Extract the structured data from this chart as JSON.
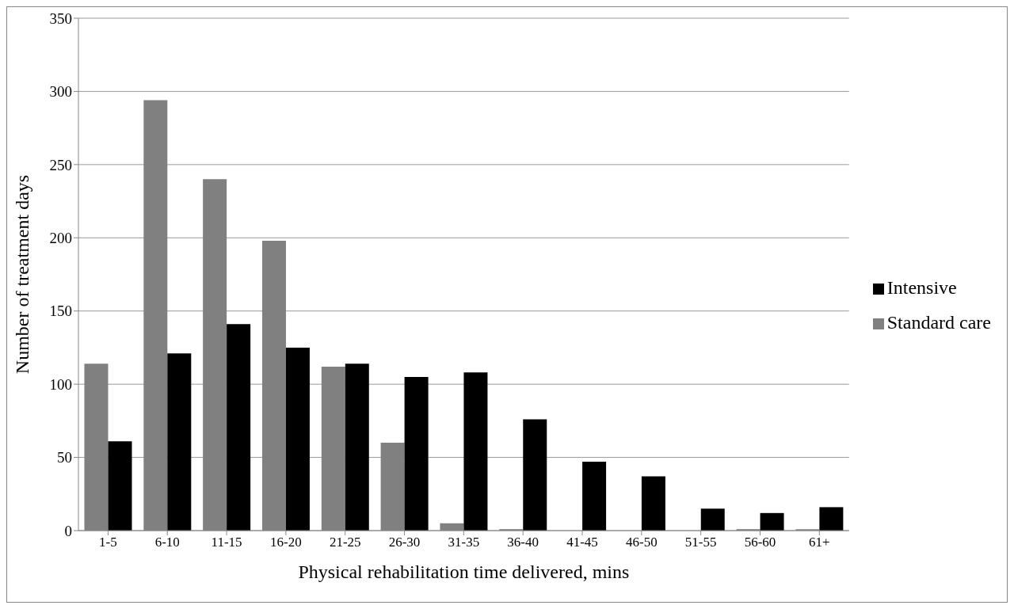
{
  "chart_data": {
    "type": "bar",
    "xlabel": "Physical rehabilitation time delivered, mins",
    "ylabel": "Number of treatment days",
    "categories": [
      "1-5",
      "6-10",
      "11-15",
      "16-20",
      "21-25",
      "26-30",
      "31-35",
      "36-40",
      "41-45",
      "46-50",
      "51-55",
      "56-60",
      "61+"
    ],
    "series": [
      {
        "name": "Standard care",
        "color": "#808080",
        "values": [
          114,
          294,
          240,
          198,
          112,
          60,
          5,
          1,
          0,
          0,
          0,
          1,
          1
        ]
      },
      {
        "name": "Intensive",
        "color": "#000000",
        "values": [
          61,
          121,
          141,
          125,
          114,
          105,
          108,
          76,
          47,
          37,
          15,
          12,
          16
        ]
      }
    ],
    "ylim": [
      0,
      350
    ],
    "yticks": [
      0,
      50,
      100,
      150,
      200,
      250,
      300,
      350
    ],
    "grid": "y",
    "legend": "right"
  }
}
